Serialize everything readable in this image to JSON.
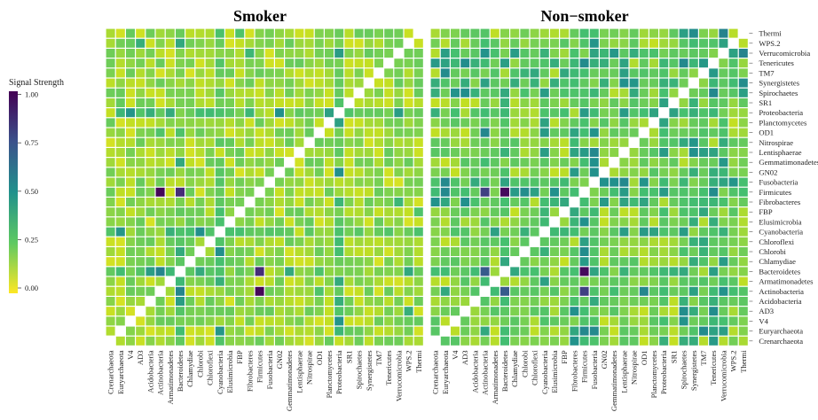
{
  "chart_data": {
    "type": "heatmap",
    "legend": {
      "title": "Signal Strength",
      "ticks": [
        "0.00",
        "0.25",
        "0.50",
        "0.75",
        "1.00"
      ],
      "range": [
        0,
        1
      ],
      "colormap": "viridis",
      "placement": "left"
    },
    "taxa_x": [
      "Crenarchaeota",
      "Euryarchaeota",
      "V4",
      "AD3",
      "Acidobacteria",
      "Actinobacteria",
      "Armatimonadetes",
      "Bacteroidetes",
      "Chlamydiae",
      "Chlorobi",
      "Chloroflexi",
      "Cyanobacteria",
      "Elusimicrobia",
      "FBP",
      "Fibrobacteres",
      "Firmicutes",
      "Fusobacteria",
      "GN02",
      "Gemmatimonadetes",
      "Lentisphaerae",
      "Nitrospirae",
      "OD1",
      "Planctomycetes",
      "Proteobacteria",
      "SR1",
      "Spirochaetes",
      "Synergistetes",
      "TM7",
      "Tenericutes",
      "Verrucomicrobia",
      "WPS.2",
      "Thermi"
    ],
    "taxa_y_top_to_bottom": [
      "Thermi",
      "WPS.2",
      "Verrucomicrobia",
      "Tenericutes",
      "TM7",
      "Synergistetes",
      "Spirochaetes",
      "SR1",
      "Proteobacteria",
      "Planctomycetes",
      "OD1",
      "Nitrospirae",
      "Lentisphaerae",
      "Gemmatimonadetes",
      "GN02",
      "Fusobacteria",
      "Firmicutes",
      "Fibrobacteres",
      "FBP",
      "Elusimicrobia",
      "Cyanobacteria",
      "Chloroflexi",
      "Chlorobi",
      "Chlamydiae",
      "Bacteroidetes",
      "Armatimonadetes",
      "Actinobacteria",
      "Acidobacteria",
      "AD3",
      "V4",
      "Euryarchaeota",
      "Crenarchaeota"
    ],
    "panels": [
      {
        "title": "Smoker",
        "strong_links": [
          {
            "a": "Actinobacteria",
            "b": "Firmicutes",
            "value": 0.98
          },
          {
            "a": "Bacteroidetes",
            "b": "Firmicutes",
            "value": 0.85
          },
          {
            "a": "Actinobacteria",
            "b": "Bacteroidetes",
            "value": 0.55
          },
          {
            "a": "AD3",
            "b": "WPS.2",
            "value": 0.42
          },
          {
            "a": "Proteobacteria",
            "b": "Acidobacteria",
            "value": 0.42
          },
          {
            "a": "Proteobacteria",
            "b": "Fibrobacteres",
            "value": 0.4
          },
          {
            "a": "Thermi",
            "b": "FBP",
            "value": 0.35
          },
          {
            "a": "Fibrobacteres",
            "b": "Verrucomicrobia",
            "value": 0.4
          },
          {
            "a": "Actinobacteria",
            "b": "OD1",
            "value": 0.35
          }
        ],
        "medium_rows": [
          "Cyanobacteria",
          "Proteobacteria",
          "Bacteroidetes"
        ],
        "baseline": 0.08
      },
      {
        "title": "Non−smoker",
        "strong_links": [
          {
            "a": "Bacteroidetes",
            "b": "Firmicutes",
            "value": 0.97
          },
          {
            "a": "Actinobacteria",
            "b": "Firmicutes",
            "value": 0.8
          },
          {
            "a": "Actinobacteria",
            "b": "Bacteroidetes",
            "value": 0.72
          },
          {
            "a": "Bacteroidetes",
            "b": "Fusobacteria",
            "value": 0.45
          },
          {
            "a": "Fusobacteria",
            "b": "Tenericutes",
            "value": 0.42
          },
          {
            "a": "Fusobacteria",
            "b": "Verrucomicrobia",
            "value": 0.45
          },
          {
            "a": "Fusobacteria",
            "b": "Spirochaetes",
            "value": 0.4
          },
          {
            "a": "Fibrobacteres",
            "b": "Tenericutes",
            "value": 0.4
          },
          {
            "a": "Cyanobacteria",
            "b": "Tenericutes",
            "value": 0.35
          },
          {
            "a": "Lentisphaerae",
            "b": "Tenericutes",
            "value": 0.45
          },
          {
            "a": "Proteobacteria",
            "b": "Tenericutes",
            "value": 0.4
          },
          {
            "a": "Fibrobacteres",
            "b": "Spirochaetes",
            "value": 0.35
          }
        ],
        "medium_rows": [
          "Fusobacteria",
          "Fibrobacteres",
          "Firmicutes",
          "Bacteroidetes",
          "Actinobacteria",
          "Cyanobacteria",
          "Tenericutes",
          "Verrucomicrobia",
          "TM7",
          "Synergistetes",
          "Spirochaetes",
          "Proteobacteria"
        ],
        "baseline": 0.12
      }
    ]
  }
}
